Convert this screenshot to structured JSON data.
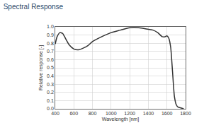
{
  "chart_data": {
    "type": "line",
    "title": "Spectral Response",
    "x_label": "Wavelength [nm]",
    "y_label": "Relative response [-]",
    "x": [
      400,
      420,
      450,
      480,
      500,
      550,
      600,
      650,
      700,
      750,
      800,
      900,
      1000,
      1100,
      1200,
      1300,
      1400,
      1450,
      1500,
      1550,
      1580,
      1600,
      1620,
      1640,
      1660,
      1680,
      1700,
      1720,
      1750,
      1780
    ],
    "series": [
      {
        "name": "Relative response",
        "color": "#333333",
        "values": [
          0.79,
          0.88,
          0.93,
          0.92,
          0.88,
          0.78,
          0.73,
          0.72,
          0.74,
          0.77,
          0.82,
          0.88,
          0.93,
          0.96,
          0.99,
          0.99,
          0.97,
          0.96,
          0.93,
          0.88,
          0.88,
          0.89,
          0.86,
          0.75,
          0.45,
          0.15,
          0.05,
          0.02,
          0.01,
          0.0
        ]
      }
    ],
    "xlim": [
      400,
      1800
    ],
    "xticks": [
      400,
      600,
      800,
      1000,
      1200,
      1400,
      1600,
      1800
    ],
    "ylim": [
      0,
      1
    ],
    "yticks": [
      {
        "value": 0,
        "label": "0.0"
      },
      0.1,
      0.2,
      0.3,
      0.4,
      0.5,
      0.6,
      0.7,
      0.8,
      0.9,
      {
        "value": 1,
        "label": "1.0"
      }
    ],
    "grid": true
  }
}
